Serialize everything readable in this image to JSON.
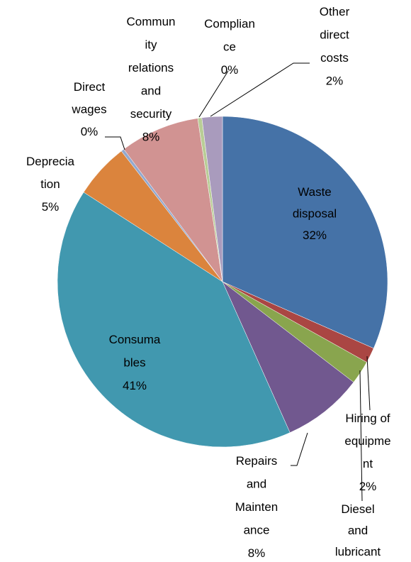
{
  "chart_data": {
    "type": "pie",
    "categories": [
      [
        "Waste",
        "disposal"
      ],
      [
        "Hiring of",
        "equipme",
        "nt"
      ],
      [
        "Diesel",
        "and",
        "lubricant"
      ],
      [
        "Repairs",
        "and",
        "Mainten",
        "ance"
      ],
      [
        "Consuma",
        "bles"
      ],
      [
        "Deprecia",
        "tion"
      ],
      [
        "Direct",
        "wages"
      ],
      [
        "Commun",
        "ity",
        "relations",
        "and",
        "security"
      ],
      [
        "Complian",
        "ce"
      ],
      [
        "Other",
        "direct",
        "costs"
      ]
    ],
    "values": [
      31.6,
      1.5,
      2.3,
      7.9,
      40.8,
      5.4,
      0.3,
      7.8,
      0.4,
      2.0
    ],
    "value_labels": [
      "32%",
      "2%",
      null,
      "8%",
      "41%",
      "5%",
      "0%",
      "8%",
      "0%",
      "2%"
    ],
    "colors": [
      "#4572a7",
      "#aa4643",
      "#89a54e",
      "#71588f",
      "#4198af",
      "#db843d",
      "#93a9cf",
      "#d19392",
      "#b9cd96",
      "#a99bbd"
    ]
  }
}
